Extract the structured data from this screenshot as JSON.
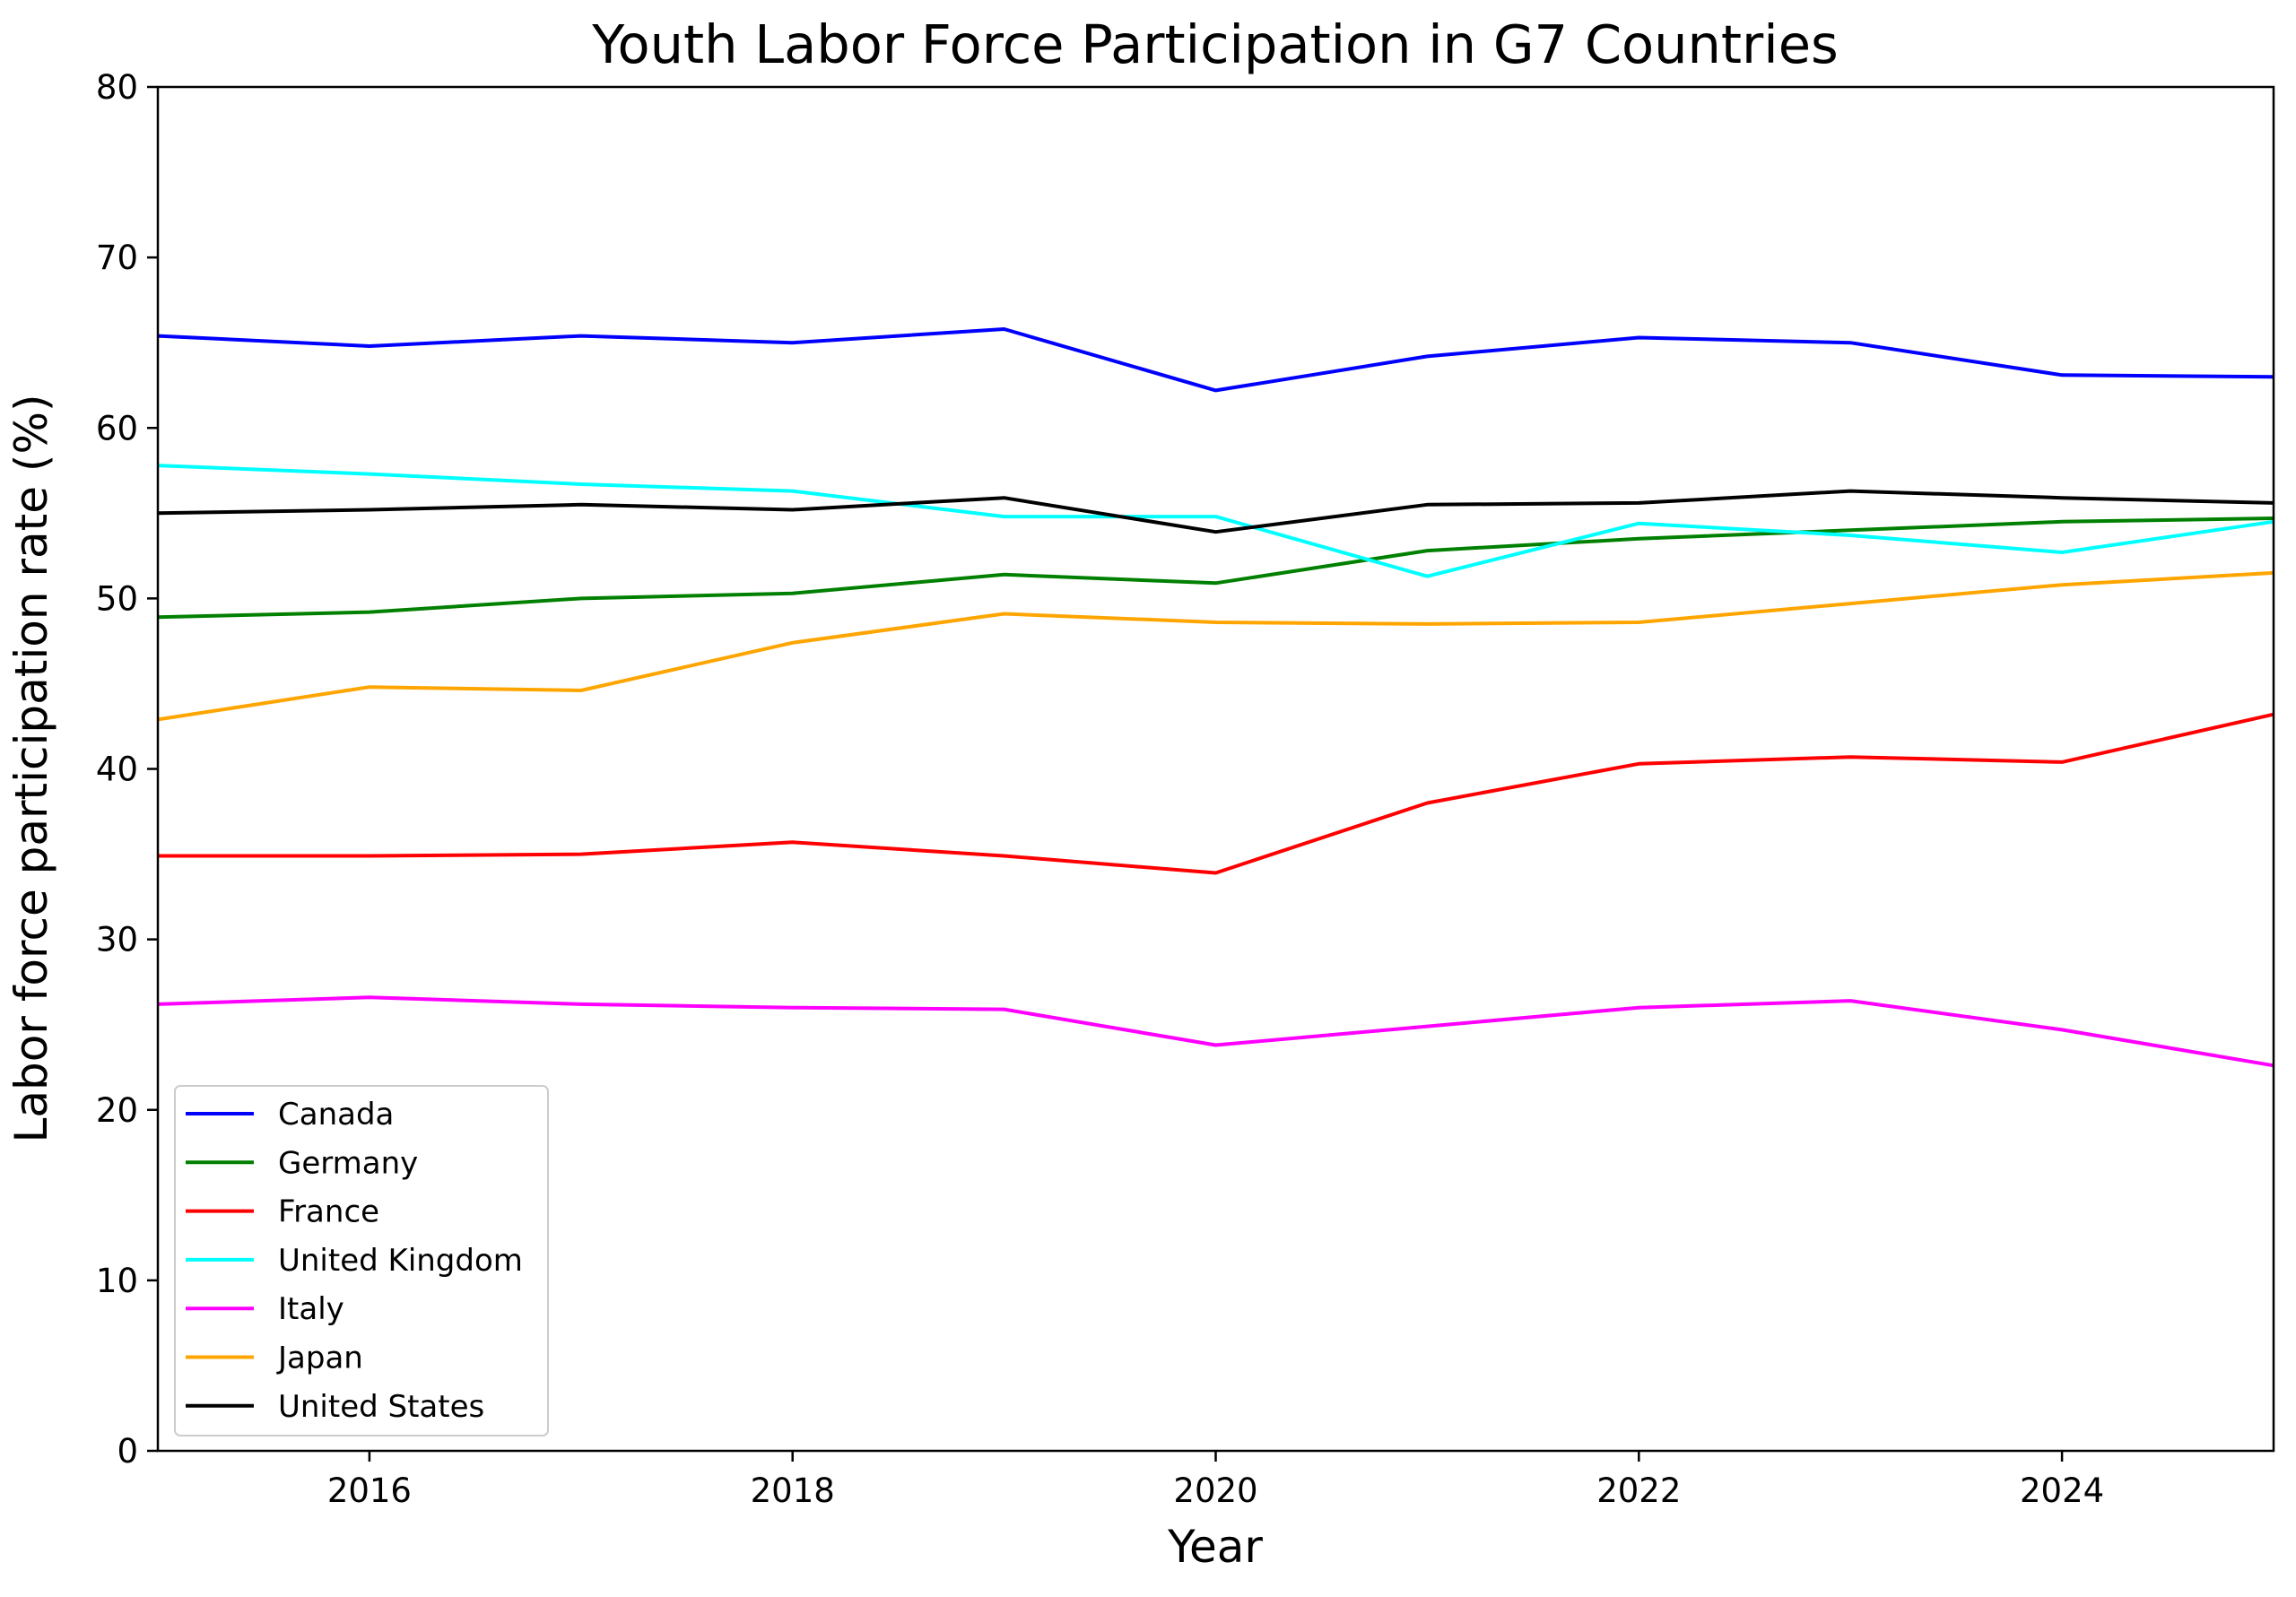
{
  "chart_data": {
    "type": "line",
    "title": "Youth Labor Force Participation in G7 Countries",
    "xlabel": "Year",
    "ylabel": "Labor force participation rate (%)",
    "xlim": [
      2015,
      2025
    ],
    "ylim": [
      0,
      80
    ],
    "xticks": [
      2016,
      2018,
      2020,
      2022,
      2024
    ],
    "yticks": [
      0,
      10,
      20,
      30,
      40,
      50,
      60,
      70,
      80
    ],
    "grid": false,
    "legend_position": "bottom-left",
    "x": [
      2015,
      2016,
      2017,
      2018,
      2019,
      2020,
      2021,
      2022,
      2023,
      2024,
      2025
    ],
    "series": [
      {
        "name": "Canada",
        "color": "#0000ff",
        "values": [
          65.4,
          64.8,
          65.4,
          65.0,
          65.8,
          62.2,
          64.2,
          65.3,
          65.0,
          63.1,
          63.0
        ]
      },
      {
        "name": "Germany",
        "color": "#008000",
        "values": [
          48.9,
          49.2,
          50.0,
          50.3,
          51.4,
          50.9,
          52.8,
          53.5,
          54.0,
          54.5,
          54.7
        ]
      },
      {
        "name": "France",
        "color": "#ff0000",
        "values": [
          34.9,
          34.9,
          35.0,
          35.7,
          34.9,
          33.9,
          38.0,
          40.3,
          40.7,
          40.4,
          43.2
        ]
      },
      {
        "name": "United Kingdom",
        "color": "#00ffff",
        "values": [
          57.8,
          57.3,
          56.7,
          56.3,
          54.8,
          54.8,
          51.3,
          54.4,
          53.7,
          52.7,
          54.5
        ]
      },
      {
        "name": "Italy",
        "color": "#ff00ff",
        "values": [
          26.2,
          26.6,
          26.2,
          26.0,
          25.9,
          23.8,
          24.9,
          26.0,
          26.4,
          24.7,
          22.6
        ]
      },
      {
        "name": "Japan",
        "color": "#ffa500",
        "values": [
          42.9,
          44.8,
          44.6,
          47.4,
          49.1,
          48.6,
          48.5,
          48.6,
          49.7,
          50.8,
          51.5
        ]
      },
      {
        "name": "United States",
        "color": "#000000",
        "values": [
          55.0,
          55.2,
          55.5,
          55.2,
          55.9,
          53.9,
          55.5,
          55.6,
          56.3,
          55.9,
          55.6
        ]
      }
    ]
  }
}
